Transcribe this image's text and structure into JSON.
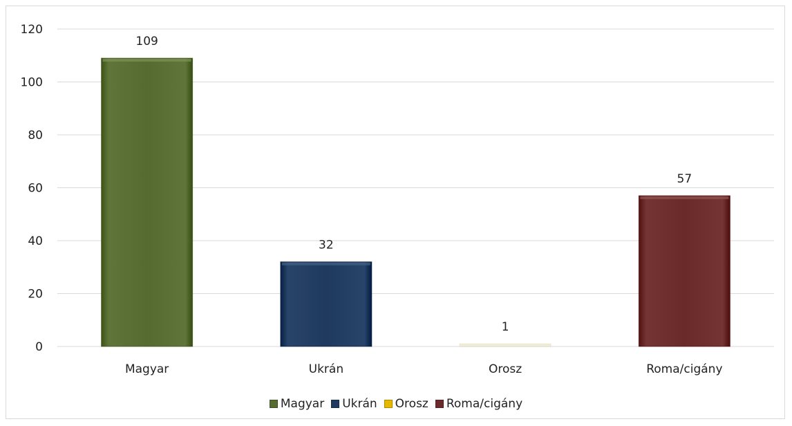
{
  "chart_data": {
    "type": "bar",
    "categories": [
      "Magyar",
      "Ukrán",
      "Orosz",
      "Roma/cigány"
    ],
    "values": [
      109,
      32,
      1,
      57
    ],
    "data_labels": [
      "109",
      "32",
      "1",
      "57"
    ],
    "colors": [
      "#556b2f",
      "#1f3a5f",
      "#e6b800",
      "#6b2a2a"
    ],
    "ylim": [
      0,
      120
    ],
    "yticks": [
      0,
      20,
      40,
      60,
      80,
      100,
      120
    ],
    "ytick_labels": [
      "0",
      "20",
      "40",
      "60",
      "80",
      "100",
      "120"
    ],
    "grid": true,
    "legend_position": "bottom",
    "legend": [
      "Magyar",
      "Ukrán",
      "Orosz",
      "Roma/cigány"
    ]
  }
}
